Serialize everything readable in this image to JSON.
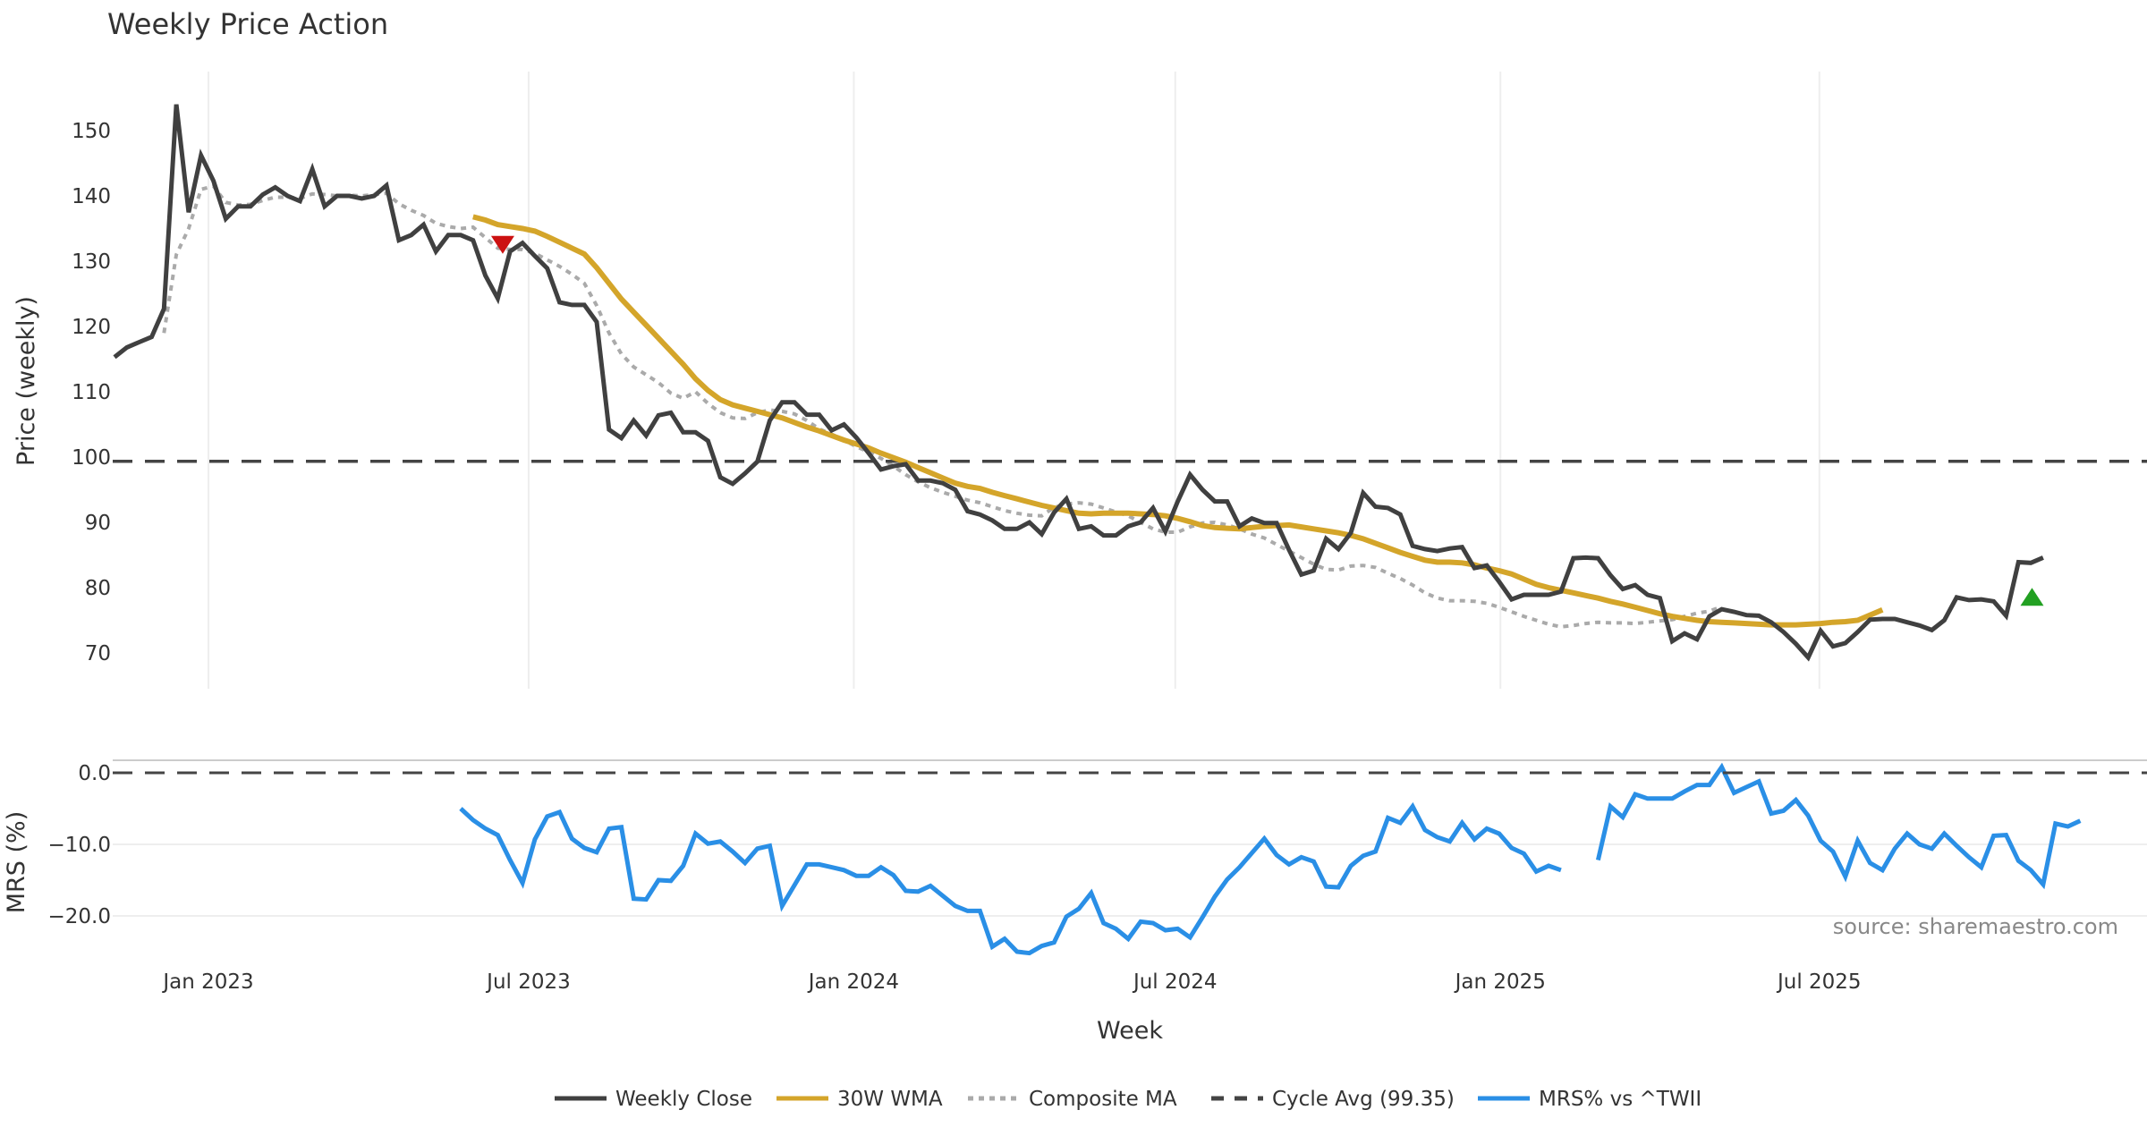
{
  "chart_data": [
    {
      "panel": "price",
      "type": "line",
      "title": "Weekly Price Action",
      "xlabel": "Week",
      "ylabel": "Price (weekly)",
      "ylim": [
        65,
        158
      ],
      "yticks": [
        70,
        80,
        90,
        100,
        110,
        120,
        130,
        140,
        150
      ],
      "x_start_week_offset": -7.6,
      "xticks": [
        {
          "label": "Jan 2023",
          "week": 7.6
        },
        {
          "label": "Jul 2023",
          "week": 33.5
        },
        {
          "label": "Jan 2024",
          "week": 59.8
        },
        {
          "label": "Jul 2024",
          "week": 85.8
        },
        {
          "label": "Jan 2025",
          "week": 112.1
        },
        {
          "label": "Jul 2025",
          "week": 137.9
        }
      ],
      "grid": "vertical",
      "series": [
        {
          "name": "Weekly Close",
          "color": "#404040",
          "style": "solid",
          "start": 0,
          "values": [
            115.3,
            116.8,
            117.6,
            118.4,
            122.7,
            154.0,
            137.5,
            146.2,
            142.3,
            136.5,
            138.4,
            138.4,
            140.2,
            141.3,
            140.0,
            139.2,
            144.1,
            138.4,
            140.0,
            140.0,
            139.6,
            140.0,
            141.6,
            133.2,
            134.0,
            135.6,
            131.5,
            134.0,
            134.0,
            133.2,
            127.8,
            124.3,
            131.5,
            132.8,
            130.8,
            128.9,
            123.7,
            123.3,
            123.3,
            120.7,
            104.2,
            102.9,
            105.6,
            103.3,
            106.4,
            106.8,
            103.8,
            103.8,
            102.5,
            96.9,
            95.9,
            97.5,
            99.3,
            105.6,
            108.4,
            108.4,
            106.5,
            106.5,
            104.1,
            105.0,
            103.0,
            100.6,
            98.1,
            98.6,
            98.9,
            96.4,
            96.4,
            96.0,
            95.0,
            91.7,
            91.2,
            90.3,
            89.0,
            89.0,
            90.0,
            88.2,
            91.5,
            93.6,
            89.0,
            89.4,
            88.0,
            88.0,
            89.4,
            90.0,
            92.2,
            88.6,
            93.2,
            97.3,
            95.0,
            93.2,
            93.2,
            89.4,
            90.6,
            89.9,
            89.9,
            85.8,
            82.0,
            82.6,
            87.5,
            85.9,
            88.4,
            94.5,
            92.4,
            92.2,
            91.2,
            86.4,
            85.9,
            85.6,
            86.0,
            86.2,
            83.0,
            83.4,
            80.9,
            78.2,
            78.9,
            78.9,
            78.9,
            79.4,
            84.5,
            84.6,
            84.5,
            81.9,
            79.8,
            80.4,
            78.9,
            78.4,
            71.8,
            73.0,
            72.1,
            75.6,
            76.7,
            76.3,
            75.8,
            75.7,
            74.7,
            73.2,
            71.4,
            69.3,
            73.4,
            71.0,
            71.5,
            73.2,
            75.1,
            75.2,
            75.2,
            74.7,
            74.2,
            73.5,
            75.0,
            78.5,
            78.1,
            78.2,
            77.9,
            75.7,
            83.9,
            83.8,
            84.6
          ]
        },
        {
          "name": "30W WMA",
          "color": "#D4A52A",
          "style": "solid",
          "start": 29,
          "values": [
            136.8,
            136.3,
            135.6,
            135.3,
            135.0,
            134.6,
            133.8,
            132.9,
            132.0,
            131.1,
            129.0,
            126.6,
            124.2,
            122.2,
            120.2,
            118.2,
            116.2,
            114.2,
            112.0,
            110.2,
            108.8,
            108.0,
            107.5,
            107.0,
            106.5,
            106.0,
            105.3,
            104.6,
            104.0,
            103.3,
            102.6,
            102.0,
            101.4,
            100.6,
            99.9,
            99.2,
            98.4,
            97.6,
            96.8,
            96.0,
            95.5,
            95.2,
            94.6,
            94.1,
            93.6,
            93.1,
            92.6,
            92.2,
            91.8,
            91.4,
            91.3,
            91.4,
            91.4,
            91.4,
            91.3,
            91.2,
            91.0,
            90.6,
            90.1,
            89.5,
            89.2,
            89.1,
            89.0,
            89.2,
            89.4,
            89.5,
            89.6,
            89.3,
            89.0,
            88.7,
            88.4,
            88.0,
            87.5,
            86.8,
            86.1,
            85.4,
            84.8,
            84.2,
            83.9,
            83.9,
            83.8,
            83.5,
            83.0,
            82.6,
            82.1,
            81.3,
            80.5,
            80.0,
            79.6,
            79.2,
            78.8,
            78.4,
            77.9,
            77.5,
            77.0,
            76.5,
            76.0,
            75.6,
            75.3,
            75.0,
            74.8,
            74.7,
            74.6,
            74.5,
            74.4,
            74.3,
            74.3,
            74.3,
            74.4,
            74.5,
            74.7,
            74.8,
            75.0,
            75.8,
            76.6
          ]
        },
        {
          "name": "Composite MA",
          "color": "#AAAAAA",
          "style": "dotted",
          "start": 4,
          "values": [
            119.0,
            131.0,
            135.0,
            141.0,
            141.5,
            139.0,
            138.6,
            138.7,
            139.3,
            139.8,
            139.8,
            139.6,
            140.3,
            140.2,
            140.0,
            140.1,
            140.0,
            140.2,
            140.4,
            138.8,
            137.8,
            137.0,
            135.8,
            135.3,
            135.0,
            135.2,
            133.6,
            132.0,
            131.8,
            131.8,
            131.2,
            130.2,
            129.2,
            128.0,
            126.6,
            123.2,
            119.0,
            115.8,
            113.8,
            112.6,
            111.4,
            109.8,
            109.0,
            110.0,
            108.2,
            106.8,
            106.0,
            105.9,
            106.8,
            107.2,
            107.0,
            106.6,
            105.6,
            104.3,
            103.5,
            102.6,
            101.6,
            100.8,
            99.8,
            98.6,
            97.3,
            96.2,
            95.3,
            94.6,
            94.0,
            93.4,
            93.0,
            92.4,
            91.8,
            91.4,
            91.1,
            91.0,
            92.3,
            92.8,
            93.0,
            92.8,
            92.2,
            91.6,
            91.0,
            90.0,
            89.0,
            88.5,
            88.5,
            89.3,
            89.9,
            90.0,
            89.6,
            89.0,
            88.2,
            87.6,
            86.6,
            85.6,
            84.6,
            83.6,
            82.8,
            82.7,
            83.3,
            83.4,
            83.1,
            82.2,
            81.4,
            80.4,
            79.2,
            78.4,
            78.0,
            78.0,
            77.9,
            77.6,
            77.0,
            76.3,
            75.6,
            75.0,
            74.4,
            74.0,
            74.2,
            74.5,
            74.7,
            74.6,
            74.6,
            74.5,
            74.7,
            74.9,
            75.1,
            75.6,
            76.1,
            76.4,
            77.1
          ]
        },
        {
          "name": "Cycle Avg (99.35)",
          "color": "#444444",
          "style": "dashed",
          "value": 99.35
        }
      ],
      "markers": [
        {
          "type": "sell",
          "shape": "triangle-down",
          "color": "#CC1111",
          "week": 31.4,
          "value": 132.5
        },
        {
          "type": "buy",
          "shape": "triangle-up",
          "color": "#22A022",
          "week": 155.1,
          "value": 78.6
        }
      ]
    },
    {
      "panel": "mrs",
      "type": "line",
      "ylabel": "MRS (%)",
      "ylim": [
        -25.8,
        1.5
      ],
      "yticks": [
        0.0,
        -10.0,
        -20.0
      ],
      "ytick_labels": [
        "0.0",
        "−10.0",
        "−20.0"
      ],
      "grid": "horizontal",
      "series": [
        {
          "name": "MRS% vs ^TWII",
          "color": "#2A8FE6",
          "style": "solid",
          "segments": [
            {
              "start": 28,
              "values": [
                -5.0,
                -6.6,
                -7.8,
                -8.7,
                -12.2,
                -15.4,
                -9.3,
                -6.1,
                -5.5,
                -9.2,
                -10.5,
                -11.1,
                -7.8,
                -7.6,
                -17.6,
                -17.7,
                -15.0,
                -15.1,
                -13.0,
                -8.5,
                -9.9,
                -9.6,
                -11.0,
                -12.6,
                -10.6,
                -10.2,
                -18.6,
                -15.7,
                -12.8,
                -12.8,
                -13.2,
                -13.6,
                -14.4,
                -14.4,
                -13.2,
                -14.3,
                -16.5,
                -16.6,
                -15.8,
                -17.2,
                -18.6,
                -19.3,
                -19.3,
                -24.3,
                -23.2,
                -25.0,
                -25.2,
                -24.2,
                -23.7,
                -20.1,
                -19.0,
                -16.8,
                -21.0,
                -21.8,
                -23.2,
                -20.8,
                -21.0,
                -22.0,
                -21.8,
                -23.0,
                -20.2,
                -17.3,
                -14.9,
                -13.2,
                -11.2,
                -9.2,
                -11.5,
                -12.8,
                -11.8,
                -12.4,
                -15.9,
                -16.0,
                -13.0,
                -11.6,
                -11.0,
                -6.3,
                -7.0,
                -4.7,
                -8.0,
                -9.0,
                -9.6,
                -7.0,
                -9.3,
                -7.8,
                -8.5,
                -10.5,
                -11.3,
                -13.8,
                -13.0,
                -13.6
              ]
            },
            {
              "start": 120,
              "values": [
                -12.2,
                -4.7,
                -6.2,
                -3.0,
                -3.6,
                -3.6,
                -3.6,
                -2.6,
                -1.7,
                -1.7,
                0.8,
                -2.8,
                -2.0,
                -1.2,
                -5.7,
                -5.3,
                -3.8,
                -6.0,
                -9.5,
                -11.0,
                -14.5,
                -9.5,
                -12.6,
                -13.6,
                -10.6,
                -8.5,
                -10.0,
                -10.6,
                -8.5,
                -10.2,
                -11.8,
                -13.2,
                -8.8,
                -8.7,
                -12.3,
                -13.6,
                -15.6,
                -7.1,
                -7.5,
                -6.7
              ]
            }
          ]
        },
        {
          "name": "zero",
          "color": "#444444",
          "style": "dashed",
          "value": 0
        }
      ]
    }
  ],
  "legend": {
    "position": "bottom-center",
    "items": [
      {
        "label": "Weekly Close",
        "color": "#404040",
        "style": "solid"
      },
      {
        "label": "30W WMA",
        "color": "#D4A52A",
        "style": "solid"
      },
      {
        "label": "Composite MA",
        "color": "#AAAAAA",
        "style": "dotted"
      },
      {
        "label": "Cycle Avg (99.35)",
        "color": "#444444",
        "style": "dashed"
      },
      {
        "label": "MRS% vs ^TWII",
        "color": "#2A8FE6",
        "style": "solid"
      }
    ]
  },
  "source_text": "source: sharemaestro.com"
}
